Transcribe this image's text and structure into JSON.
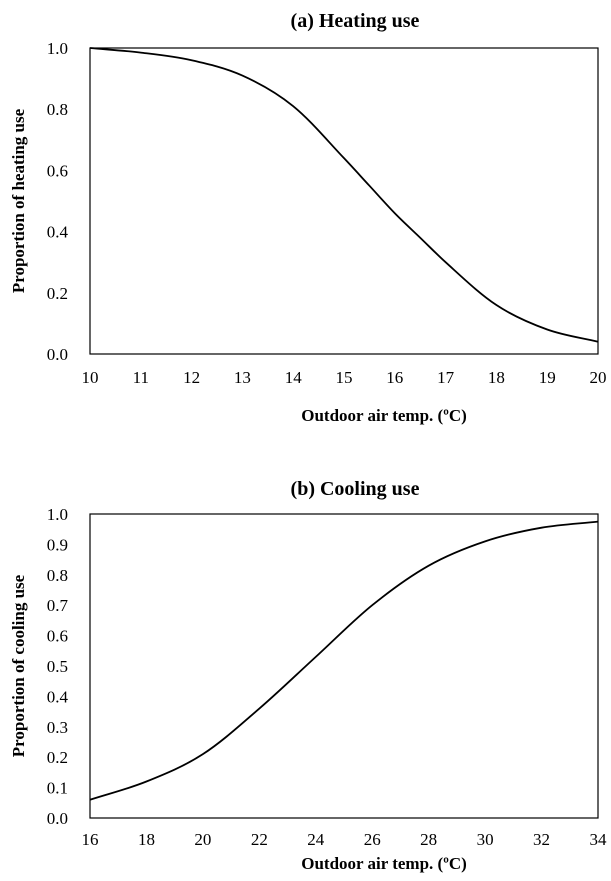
{
  "chart_data": [
    {
      "type": "line",
      "title": "(a) Heating use",
      "xlabel": "Outdoor air temp. (ºC)",
      "ylabel": "Proportion of heating use",
      "xlim": [
        10,
        20
      ],
      "ylim": [
        0,
        1
      ],
      "xticks": [
        "10",
        "11",
        "12",
        "13",
        "14",
        "15",
        "16",
        "17",
        "18",
        "19",
        "20"
      ],
      "yticks": [
        "0.0",
        "0.2",
        "0.4",
        "0.6",
        "0.8",
        "1.0"
      ],
      "grid": false,
      "series": [
        {
          "x": [
            10,
            11,
            12,
            13,
            14,
            15,
            15.5,
            16,
            16.5,
            17,
            18,
            19,
            20
          ],
          "values": [
            1.0,
            0.985,
            0.96,
            0.91,
            0.81,
            0.64,
            0.55,
            0.46,
            0.38,
            0.3,
            0.16,
            0.08,
            0.04
          ]
        }
      ]
    },
    {
      "type": "line",
      "title": "(b) Cooling use",
      "xlabel": "Outdoor air temp. (ºC)",
      "ylabel": "Proportion of cooling use",
      "xlim": [
        16,
        34
      ],
      "ylim": [
        0,
        1
      ],
      "xticks": [
        "16",
        "18",
        "20",
        "22",
        "24",
        "26",
        "28",
        "30",
        "32",
        "34"
      ],
      "yticks": [
        "0.0",
        "0.1",
        "0.2",
        "0.3",
        "0.4",
        "0.5",
        "0.6",
        "0.7",
        "0.8",
        "0.9",
        "1.0"
      ],
      "grid": false,
      "series": [
        {
          "x": [
            16,
            18,
            20,
            22,
            24,
            26,
            28,
            30,
            32,
            34
          ],
          "values": [
            0.06,
            0.12,
            0.21,
            0.36,
            0.53,
            0.7,
            0.83,
            0.91,
            0.955,
            0.975
          ]
        }
      ]
    }
  ]
}
